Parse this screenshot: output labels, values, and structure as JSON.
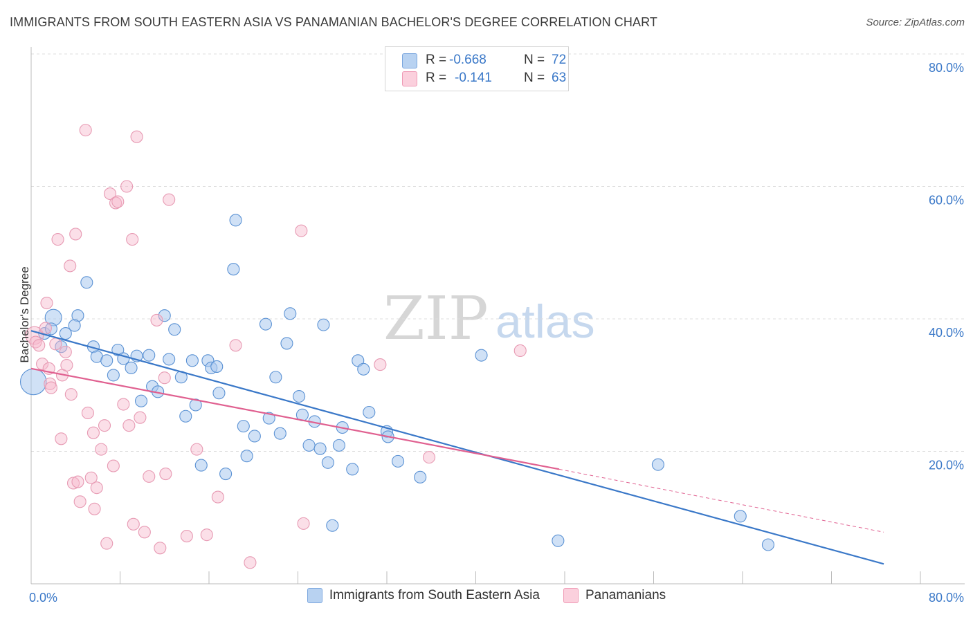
{
  "title": "IMMIGRANTS FROM SOUTH EASTERN ASIA VS PANAMANIAN BACHELOR'S DEGREE CORRELATION CHART",
  "source": "Source: ZipAtlas.com",
  "watermark": {
    "zip": "ZIP",
    "atlas": "atlas"
  },
  "colors": {
    "blue": "#3a78c8",
    "blue_fill": "#a9c8ee",
    "pink": "#e06090",
    "pink_fill": "#f6b8cb",
    "grid": "#dcdcdc",
    "tick_label": "#3a78c8"
  },
  "stats": [
    {
      "r_label": "R =",
      "r_value": "-0.668",
      "n_label": "N =",
      "n_value": "72"
    },
    {
      "r_label": "R =",
      "r_value": "-0.141",
      "n_label": "N =",
      "n_value": "63"
    }
  ],
  "legend": [
    "Immigrants from South Eastern Asia",
    "Panamanians"
  ],
  "chart_data": {
    "type": "scatter",
    "title": "IMMIGRANTS FROM SOUTH EASTERN ASIA VS PANAMANIAN BACHELOR'S DEGREE CORRELATION CHART",
    "xlabel": "",
    "ylabel": "Bachelor's Degree",
    "xlim": [
      0,
      80
    ],
    "ylim": [
      0,
      80
    ],
    "x_tick_labels": [
      "0.0%",
      "80.0%"
    ],
    "y_ticks": [
      20,
      40,
      60,
      80
    ],
    "y_tick_labels": [
      "20.0%",
      "40.0%",
      "60.0%",
      "80.0%"
    ],
    "grid": true,
    "legend_position": "bottom",
    "series": [
      {
        "name": "Immigrants from South Eastern Asia",
        "color": "#3a78c8",
        "trend": {
          "x": [
            0,
            76.7
          ],
          "y": [
            38.2,
            3.0
          ]
        },
        "points": [
          [
            0.2,
            30.5,
            2.2
          ],
          [
            1.2,
            37.8,
            1
          ],
          [
            2.0,
            40.2,
            1.4
          ],
          [
            1.8,
            38.5,
            1
          ],
          [
            3.1,
            37.8,
            1
          ],
          [
            2.7,
            35.8,
            1
          ],
          [
            4.2,
            40.5,
            1
          ],
          [
            3.9,
            39.0,
            1
          ],
          [
            5.0,
            45.5,
            1
          ],
          [
            5.6,
            35.8,
            1
          ],
          [
            5.9,
            34.3,
            1
          ],
          [
            6.8,
            33.7,
            1
          ],
          [
            7.4,
            31.5,
            1
          ],
          [
            7.8,
            35.3,
            1
          ],
          [
            8.3,
            34.0,
            1
          ],
          [
            9.0,
            32.6,
            1
          ],
          [
            9.5,
            34.4,
            1
          ],
          [
            9.9,
            27.6,
            1
          ],
          [
            10.6,
            34.5,
            1
          ],
          [
            10.9,
            29.8,
            1
          ],
          [
            11.4,
            29.0,
            1
          ],
          [
            12.0,
            40.5,
            1
          ],
          [
            12.4,
            33.9,
            1
          ],
          [
            12.9,
            38.4,
            1
          ],
          [
            13.5,
            31.2,
            1
          ],
          [
            13.9,
            25.3,
            1
          ],
          [
            14.5,
            33.7,
            1
          ],
          [
            14.8,
            27.0,
            1
          ],
          [
            15.3,
            17.9,
            1
          ],
          [
            15.9,
            33.7,
            1
          ],
          [
            16.2,
            32.6,
            1
          ],
          [
            16.7,
            32.8,
            1
          ],
          [
            16.9,
            28.8,
            1
          ],
          [
            17.5,
            16.6,
            1
          ],
          [
            18.2,
            47.5,
            1
          ],
          [
            18.4,
            54.9,
            1
          ],
          [
            19.1,
            23.8,
            1
          ],
          [
            19.4,
            19.3,
            1
          ],
          [
            20.1,
            22.3,
            1
          ],
          [
            21.1,
            39.2,
            1
          ],
          [
            21.4,
            25.0,
            1
          ],
          [
            22.0,
            31.2,
            1
          ],
          [
            22.4,
            22.7,
            1
          ],
          [
            23.0,
            36.3,
            1
          ],
          [
            23.3,
            40.8,
            1
          ],
          [
            24.1,
            28.3,
            1
          ],
          [
            24.4,
            25.5,
            1
          ],
          [
            25.0,
            20.9,
            1
          ],
          [
            25.5,
            24.5,
            1
          ],
          [
            26.0,
            20.4,
            1
          ],
          [
            26.3,
            39.1,
            1
          ],
          [
            26.7,
            18.3,
            1
          ],
          [
            27.1,
            8.8,
            1
          ],
          [
            27.7,
            20.9,
            1
          ],
          [
            28.0,
            23.6,
            1
          ],
          [
            28.9,
            17.3,
            1
          ],
          [
            29.4,
            33.7,
            1
          ],
          [
            29.9,
            32.4,
            1
          ],
          [
            30.4,
            25.9,
            1
          ],
          [
            32.0,
            23.0,
            1
          ],
          [
            32.1,
            22.2,
            1
          ],
          [
            33.0,
            18.5,
            1
          ],
          [
            35.0,
            16.1,
            1
          ],
          [
            40.5,
            34.5,
            1
          ],
          [
            47.4,
            6.5,
            1
          ],
          [
            56.4,
            18.0,
            1
          ],
          [
            63.8,
            10.2,
            1
          ],
          [
            66.3,
            5.9,
            1
          ]
        ]
      },
      {
        "name": "Panamanians",
        "color": "#e06090",
        "trend": {
          "x": [
            0,
            47.5
          ],
          "y": [
            32.5,
            17.3
          ]
        },
        "trend_dashed": {
          "x": [
            47.5,
            76.7
          ],
          "y": [
            17.3,
            7.8
          ]
        },
        "points": [
          [
            0.3,
            37.5,
            1.5
          ],
          [
            0.4,
            36.5,
            1
          ],
          [
            0.7,
            36.0,
            1
          ],
          [
            1.0,
            33.2,
            1
          ],
          [
            1.3,
            38.6,
            1
          ],
          [
            1.4,
            42.4,
            1
          ],
          [
            1.6,
            32.5,
            1
          ],
          [
            1.7,
            30.2,
            1
          ],
          [
            1.8,
            29.6,
            1
          ],
          [
            2.2,
            36.2,
            1
          ],
          [
            2.4,
            52.0,
            1
          ],
          [
            2.7,
            21.9,
            1
          ],
          [
            2.8,
            31.5,
            1
          ],
          [
            3.1,
            35.0,
            1
          ],
          [
            3.2,
            33.0,
            1
          ],
          [
            3.5,
            48.0,
            1
          ],
          [
            3.6,
            28.6,
            1
          ],
          [
            3.8,
            15.2,
            1
          ],
          [
            4.0,
            52.8,
            1
          ],
          [
            4.2,
            15.4,
            1
          ],
          [
            4.4,
            12.4,
            1
          ],
          [
            4.9,
            68.5,
            1
          ],
          [
            5.1,
            25.8,
            1
          ],
          [
            5.4,
            16.0,
            1
          ],
          [
            5.6,
            22.8,
            1
          ],
          [
            5.7,
            11.3,
            1
          ],
          [
            5.9,
            14.5,
            1
          ],
          [
            6.3,
            20.3,
            1
          ],
          [
            6.6,
            23.9,
            1
          ],
          [
            6.8,
            6.1,
            1
          ],
          [
            7.1,
            58.9,
            1
          ],
          [
            7.4,
            17.8,
            1
          ],
          [
            7.6,
            57.5,
            1
          ],
          [
            7.8,
            57.7,
            1
          ],
          [
            8.3,
            27.1,
            1
          ],
          [
            8.6,
            60.0,
            1
          ],
          [
            8.8,
            23.9,
            1
          ],
          [
            9.1,
            52.0,
            1
          ],
          [
            9.2,
            9.0,
            1
          ],
          [
            9.5,
            67.5,
            1
          ],
          [
            9.8,
            25.1,
            1
          ],
          [
            10.2,
            7.8,
            1
          ],
          [
            10.6,
            16.2,
            1
          ],
          [
            11.3,
            39.8,
            1
          ],
          [
            11.6,
            5.4,
            1
          ],
          [
            12.0,
            31.1,
            1
          ],
          [
            12.1,
            16.6,
            1
          ],
          [
            12.4,
            58.0,
            1
          ],
          [
            14.0,
            7.2,
            1
          ],
          [
            14.9,
            20.3,
            1
          ],
          [
            15.8,
            7.4,
            1
          ],
          [
            16.8,
            13.1,
            1
          ],
          [
            18.4,
            36.0,
            1
          ],
          [
            19.7,
            3.2,
            1
          ],
          [
            24.3,
            53.3,
            1
          ],
          [
            24.5,
            9.1,
            1
          ],
          [
            31.4,
            33.1,
            1
          ],
          [
            35.8,
            19.1,
            1
          ],
          [
            44.0,
            35.2,
            1
          ]
        ]
      }
    ]
  }
}
